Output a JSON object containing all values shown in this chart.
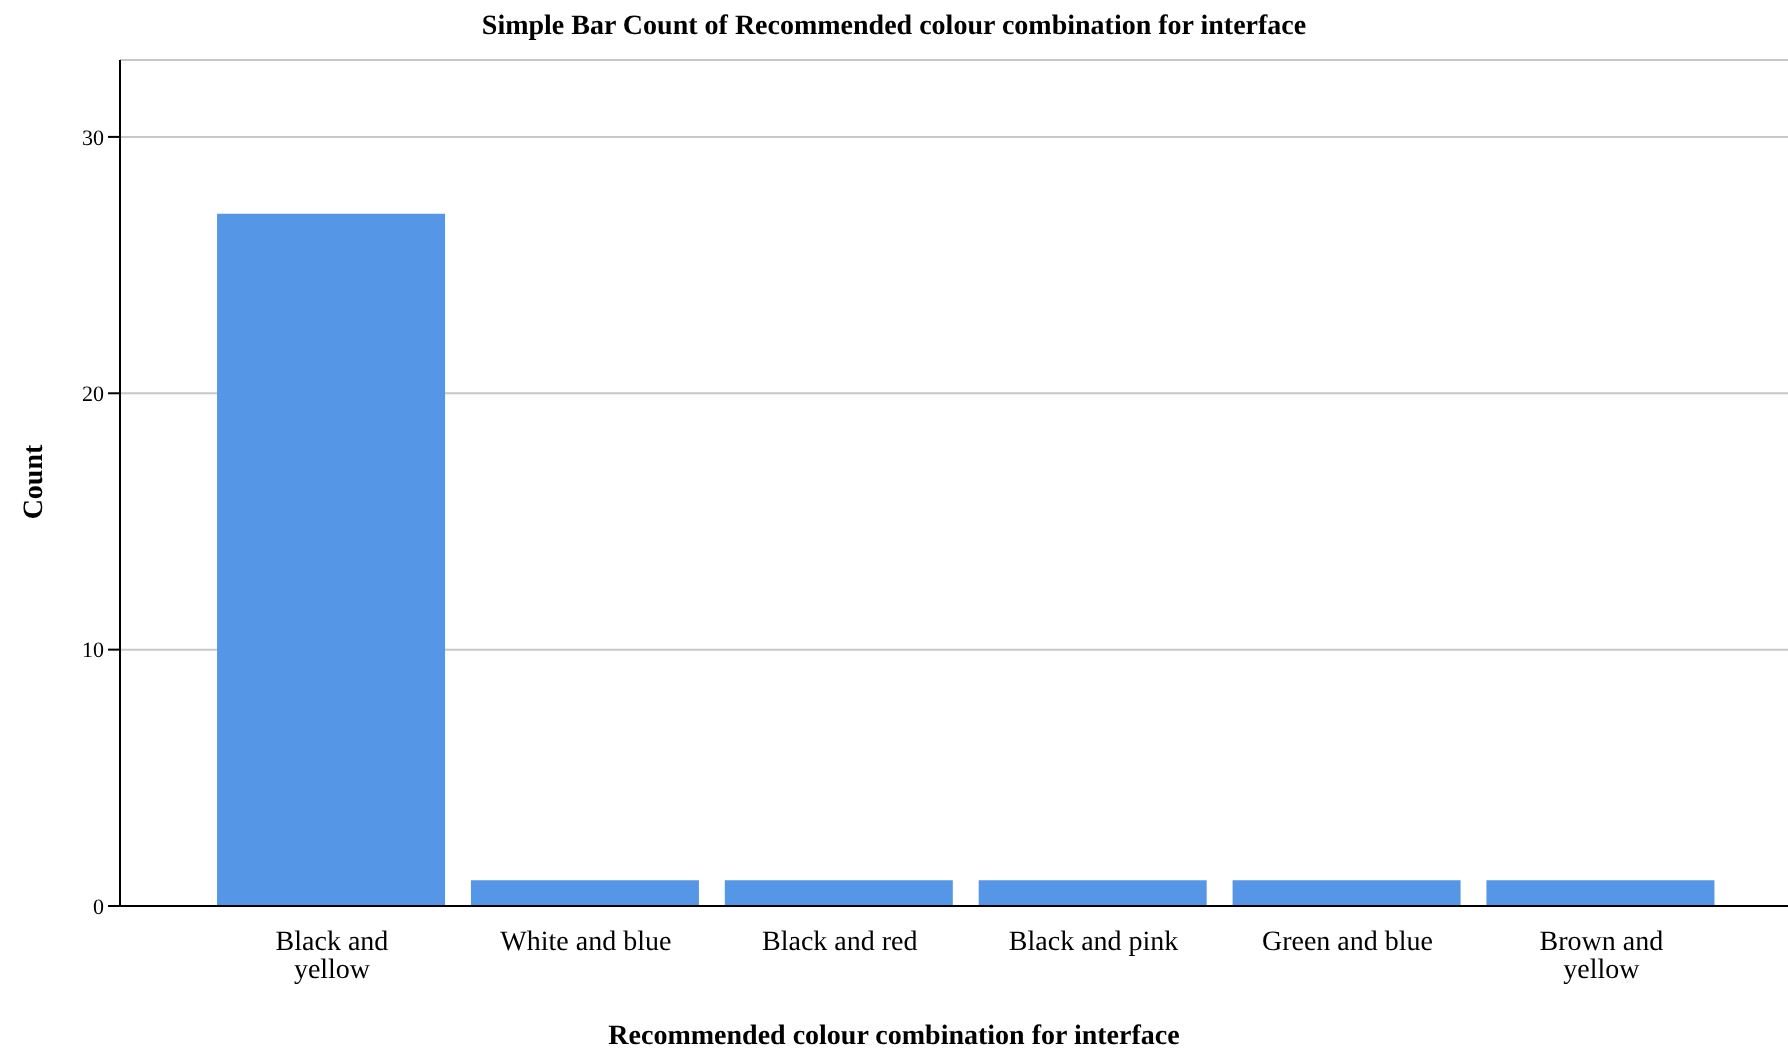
{
  "chart_data": {
    "type": "bar",
    "title": "Simple Bar Count of Recommended colour combination for interface",
    "xlabel": "Recommended colour combination for interface",
    "ylabel": "Count",
    "categories": [
      "Black and yellow",
      "White and blue",
      "Black and red",
      "Black and pink",
      "Green and blue",
      "Brown and yellow"
    ],
    "values": [
      27,
      1,
      1,
      1,
      1,
      1
    ],
    "color": "#5596e6",
    "ylim": [
      0,
      33
    ],
    "yticks": [
      0,
      10,
      20,
      30
    ],
    "grid": "y"
  }
}
